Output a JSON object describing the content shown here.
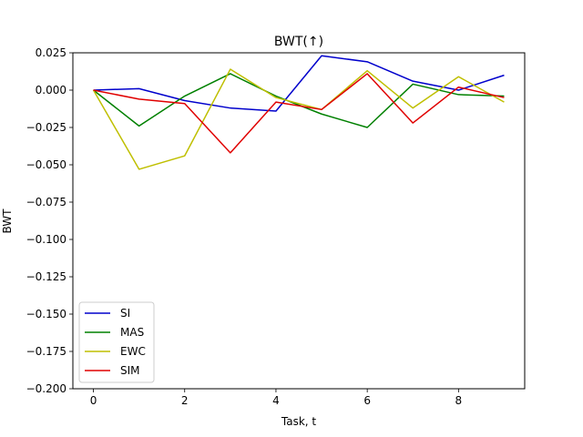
{
  "chart_data": {
    "type": "line",
    "title": "BWT(↑)",
    "xlabel": "Task, t",
    "ylabel": "BWT",
    "xlim": [
      -0.45,
      9.45
    ],
    "ylim": [
      -0.2,
      0.025
    ],
    "xticks": [
      0,
      2,
      4,
      6,
      8
    ],
    "xtick_labels": [
      "0",
      "2",
      "4",
      "6",
      "8"
    ],
    "yticks": [
      0.025,
      0.0,
      -0.025,
      -0.05,
      -0.075,
      -0.1,
      -0.125,
      -0.15,
      -0.175,
      -0.2
    ],
    "ytick_labels": [
      "0.025",
      "0.000",
      "−0.025",
      "−0.050",
      "−0.075",
      "−0.100",
      "−0.125",
      "−0.150",
      "−0.175",
      "−0.200"
    ],
    "grid": false,
    "legend_position": "lower-left",
    "x": [
      0,
      1,
      2,
      3,
      4,
      5,
      6,
      7,
      8,
      9
    ],
    "series": [
      {
        "name": "SI",
        "color": "#0000cc",
        "values": [
          0.0,
          0.001,
          -0.007,
          -0.012,
          -0.014,
          0.023,
          0.019,
          0.006,
          0.0,
          0.01
        ]
      },
      {
        "name": "MAS",
        "color": "#008000",
        "values": [
          0.0,
          -0.024,
          -0.004,
          0.011,
          -0.004,
          -0.016,
          -0.025,
          0.004,
          -0.003,
          -0.004
        ]
      },
      {
        "name": "EWC",
        "color": "#bfbf00",
        "values": [
          0.0,
          -0.053,
          -0.044,
          0.014,
          -0.005,
          -0.013,
          0.013,
          -0.012,
          0.009,
          -0.008
        ]
      },
      {
        "name": "SIM",
        "color": "#e00000",
        "values": [
          0.0,
          -0.006,
          -0.009,
          -0.042,
          -0.008,
          -0.013,
          0.011,
          -0.022,
          0.002,
          -0.005
        ]
      }
    ]
  }
}
